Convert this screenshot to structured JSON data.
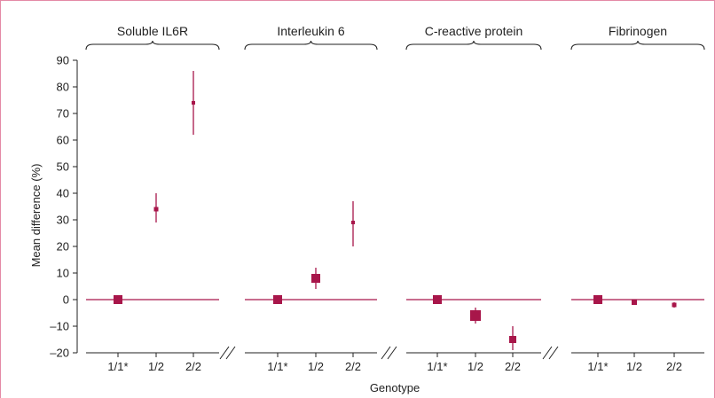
{
  "chart_data": {
    "type": "scatter",
    "ylabel": "Mean difference (%)",
    "xlabel": "Genotype",
    "ylim": [
      -20,
      90
    ],
    "yticks": [
      -20,
      -10,
      0,
      10,
      20,
      30,
      40,
      50,
      60,
      70,
      80,
      90
    ],
    "grid": false,
    "colors": {
      "marker": "#a8164a",
      "frame": "#e48aa6",
      "text": "#222222",
      "axis": "#222222"
    },
    "panels": [
      {
        "title": "Soluble IL6R",
        "categories": [
          "1/1*",
          "1/2",
          "2/2"
        ],
        "points": [
          {
            "genotype": "1/1*",
            "value": 0,
            "lower": 0,
            "upper": 0
          },
          {
            "genotype": "1/2",
            "value": 34,
            "lower": 29,
            "upper": 40
          },
          {
            "genotype": "2/2",
            "value": 74,
            "lower": 62,
            "upper": 86
          }
        ]
      },
      {
        "title": "Interleukin 6",
        "categories": [
          "1/1*",
          "1/2",
          "2/2"
        ],
        "points": [
          {
            "genotype": "1/1*",
            "value": 0,
            "lower": 0,
            "upper": 0
          },
          {
            "genotype": "1/2",
            "value": 8,
            "lower": 4,
            "upper": 12
          },
          {
            "genotype": "2/2",
            "value": 29,
            "lower": 20,
            "upper": 37
          }
        ]
      },
      {
        "title": "C-reactive protein",
        "categories": [
          "1/1*",
          "1/2",
          "2/2"
        ],
        "points": [
          {
            "genotype": "1/1*",
            "value": 0,
            "lower": 0,
            "upper": 0
          },
          {
            "genotype": "1/2",
            "value": -6,
            "lower": -9,
            "upper": -3
          },
          {
            "genotype": "2/2",
            "value": -15,
            "lower": -19,
            "upper": -10
          }
        ]
      },
      {
        "title": "Fibrinogen",
        "categories": [
          "1/1*",
          "1/2",
          "2/2"
        ],
        "points": [
          {
            "genotype": "1/1*",
            "value": 0,
            "lower": 0,
            "upper": 0
          },
          {
            "genotype": "1/2",
            "value": -1,
            "lower": -2,
            "upper": 0
          },
          {
            "genotype": "2/2",
            "value": -2,
            "lower": -3,
            "upper": -1
          }
        ]
      }
    ]
  }
}
